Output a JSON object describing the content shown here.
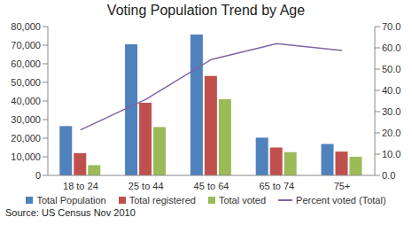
{
  "chart_data": {
    "type": "bar",
    "title": "Voting Population Trend by Age",
    "annotation": "Source: US Census Nov 2010",
    "categories": [
      "18 to 24",
      "25 to 44",
      "45 to 64",
      "65 to 74",
      "75+"
    ],
    "series": [
      {
        "name": "Total Population",
        "color": "#4f81bd",
        "type": "bar",
        "values": [
          26500,
          70500,
          75700,
          20300,
          16900
        ]
      },
      {
        "name": "Total registered",
        "color": "#c0504d",
        "type": "bar",
        "values": [
          12000,
          39000,
          53500,
          15000,
          12800
        ]
      },
      {
        "name": "Total voted",
        "color": "#9bbb59",
        "type": "bar",
        "values": [
          5500,
          26000,
          41000,
          12500,
          10000
        ]
      },
      {
        "name": "Percent voted (Total)",
        "color": "#8064a2",
        "type": "line",
        "axis": "y2",
        "values": [
          21.4,
          35.8,
          54.5,
          62.0,
          58.8
        ]
      }
    ],
    "ylim": [
      0,
      80000
    ],
    "yticks": [
      0,
      {
        "value": 10000,
        "label": "10,000"
      },
      {
        "value": 20000,
        "label": "20,000"
      },
      {
        "value": 30000,
        "label": "30,000"
      },
      {
        "value": 40000,
        "label": "40,000"
      },
      {
        "value": 50000,
        "label": "50,000"
      },
      {
        "value": 60000,
        "label": "60,000"
      },
      {
        "value": 70000,
        "label": "70,000"
      },
      {
        "value": 80000,
        "label": "80,000"
      }
    ],
    "y2lim": [
      0,
      70
    ],
    "y2ticks": [
      {
        "value": 0,
        "label": "0.0"
      },
      {
        "value": 10,
        "label": "10.0"
      },
      {
        "value": 20,
        "label": "20.0"
      },
      {
        "value": 30,
        "label": "30.0"
      },
      {
        "value": 40,
        "label": "40.0"
      },
      {
        "value": 50,
        "label": "50.0"
      },
      {
        "value": 60,
        "label": "60.0"
      },
      {
        "value": 70,
        "label": "70.0"
      }
    ],
    "grid": false,
    "legend": "bottom"
  }
}
